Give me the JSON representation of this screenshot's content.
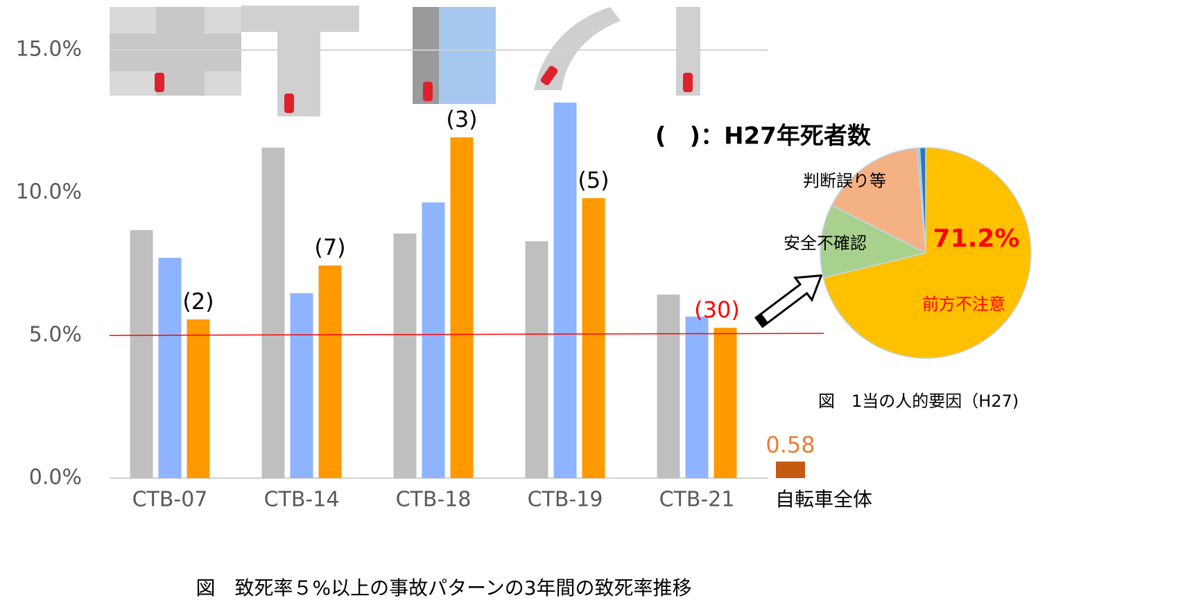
{
  "chart_data": [
    {
      "type": "bar",
      "title": "図　致死率５%以上の事故パターンの3年間の致死率推移",
      "annotation": "(　)：H27年死者数",
      "categories": [
        "CTB-07",
        "CTB-14",
        "CTB-18",
        "CTB-19",
        "CTB-21"
      ],
      "series": [
        {
          "color": "#bfbfbf",
          "values": [
            8.69,
            11.58,
            8.57,
            8.3,
            6.43
          ]
        },
        {
          "color": "#8fb4ff",
          "values": [
            7.72,
            6.48,
            9.66,
            13.16,
            5.66
          ]
        },
        {
          "color": "#ff9900",
          "values": [
            5.56,
            7.45,
            11.94,
            9.81,
            5.27
          ],
          "count_labels": [
            "(2)",
            "(7)",
            "(3)",
            "(5)",
            "(30)"
          ],
          "count_label_colors": [
            "#000000",
            "#000000",
            "#000000",
            "#000000",
            "#ff0000"
          ]
        }
      ],
      "extra_bar": {
        "category": "自転車全体",
        "value": 0.58,
        "color": "#c55a11",
        "label_color": "#ed7d31"
      },
      "threshold": 5,
      "threshold_color": "#ff0000",
      "ylim": [
        0,
        16
      ],
      "yticks": [
        {
          "value": 0,
          "label": "0.0%"
        },
        {
          "value": 5,
          "label": "5.0%"
        },
        {
          "value": 10,
          "label": "10.0%"
        },
        {
          "value": 15,
          "label": "15.0%"
        }
      ]
    },
    {
      "type": "pie",
      "title": "図　1当の人的要因（H27)",
      "categories": [
        "前方不注意",
        "安全不確認",
        "判断誤り等",
        null,
        null
      ],
      "values": [
        71.2,
        11.3,
        16.2,
        0.4,
        0.9
      ],
      "value_labels": [
        "71.2%",
        null,
        null,
        null,
        null
      ],
      "colors": [
        "#ffc000",
        "#a9d18e",
        "#f4b183",
        "#9dc3e6",
        "#2e75b6"
      ]
    }
  ]
}
